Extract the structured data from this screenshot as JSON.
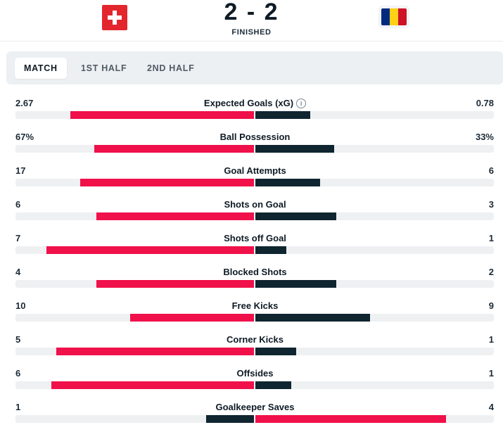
{
  "match": {
    "score": "2 - 2",
    "status": "FINISHED",
    "home_team_flag": "switzerland-flag",
    "away_team_flag": "romania-flag",
    "home_color": "#e3262d",
    "away_flag_colors": [
      "#002b7f",
      "#fcd116",
      "#ce1126"
    ]
  },
  "tabs": [
    {
      "label": "MATCH",
      "active": true
    },
    {
      "label": "1ST HALF",
      "active": false
    },
    {
      "label": "2ND HALF",
      "active": false
    }
  ],
  "colors": {
    "better": "#f0104a",
    "worse": "#0f2530",
    "track": "#eef0f2"
  },
  "stats": [
    {
      "label": "Expected Goals (xG)",
      "home": "2.67",
      "away": "0.78",
      "home_pct": 77,
      "away_pct": 23,
      "info": true
    },
    {
      "label": "Ball Possession",
      "home": "67%",
      "away": "33%",
      "home_pct": 67,
      "away_pct": 33
    },
    {
      "label": "Goal Attempts",
      "home": "17",
      "away": "6",
      "home_pct": 73,
      "away_pct": 27
    },
    {
      "label": "Shots on Goal",
      "home": "6",
      "away": "3",
      "home_pct": 66,
      "away_pct": 34
    },
    {
      "label": "Shots off Goal",
      "home": "7",
      "away": "1",
      "home_pct": 87,
      "away_pct": 13
    },
    {
      "label": "Blocked Shots",
      "home": "4",
      "away": "2",
      "home_pct": 66,
      "away_pct": 34
    },
    {
      "label": "Free Kicks",
      "home": "10",
      "away": "9",
      "home_pct": 52,
      "away_pct": 48
    },
    {
      "label": "Corner Kicks",
      "home": "5",
      "away": "1",
      "home_pct": 83,
      "away_pct": 17
    },
    {
      "label": "Offsides",
      "home": "6",
      "away": "1",
      "home_pct": 85,
      "away_pct": 15
    },
    {
      "label": "Goalkeeper Saves",
      "home": "1",
      "away": "4",
      "home_pct": 20,
      "away_pct": 80
    }
  ]
}
